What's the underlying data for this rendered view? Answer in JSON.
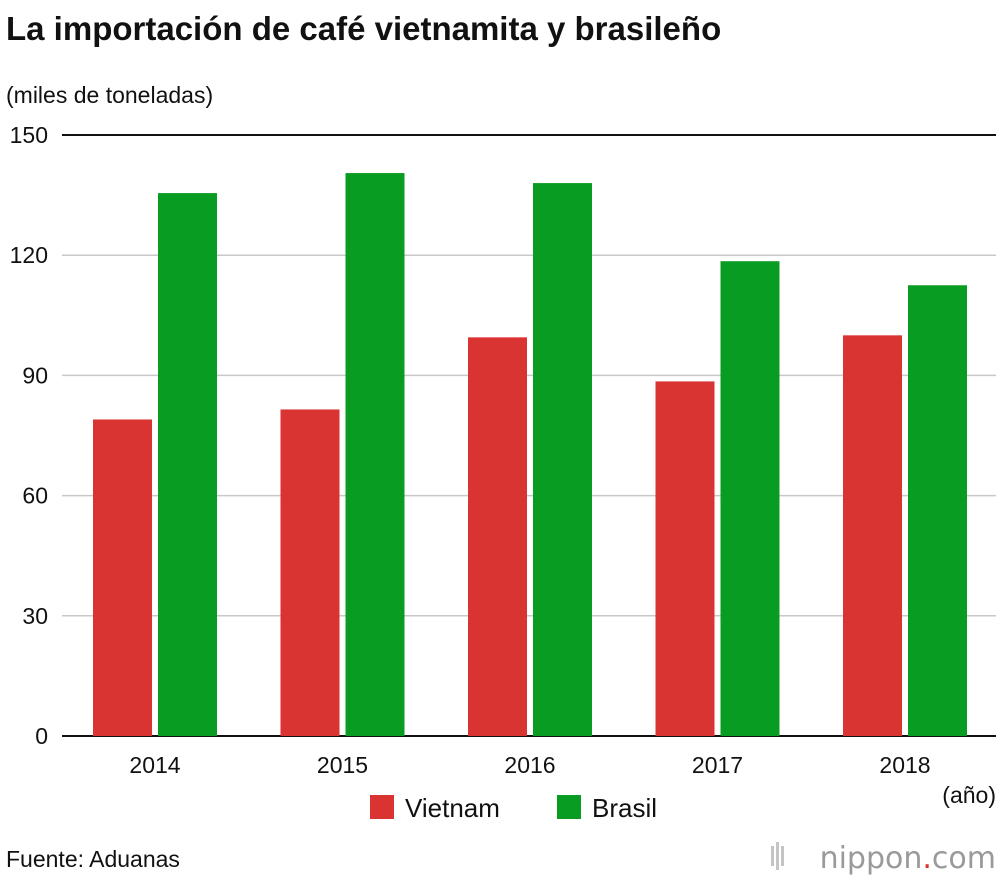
{
  "chart_data": {
    "type": "bar",
    "title": "La importación de café vietnamita y brasileño",
    "ylabel": "(miles de toneladas)",
    "xlabel": "(año)",
    "categories": [
      "2014",
      "2015",
      "2016",
      "2017",
      "2018"
    ],
    "series": [
      {
        "name": "Vietnam",
        "color": "#d93332",
        "values": [
          79,
          81.5,
          99.5,
          88.5,
          100
        ]
      },
      {
        "name": "Brasil",
        "color": "#089c22",
        "values": [
          135.5,
          140.5,
          138,
          118.5,
          112.5
        ]
      }
    ],
    "ylim": [
      0,
      150
    ],
    "yticks": [
      "0",
      "30",
      "60",
      "90",
      "120",
      "150"
    ],
    "grid": true,
    "legend_position": "bottom-center",
    "source": "Fuente: Aduanas"
  },
  "branding": {
    "name": "nippon",
    "dot": ".",
    "domain": "com",
    "accent": "#d93332"
  }
}
